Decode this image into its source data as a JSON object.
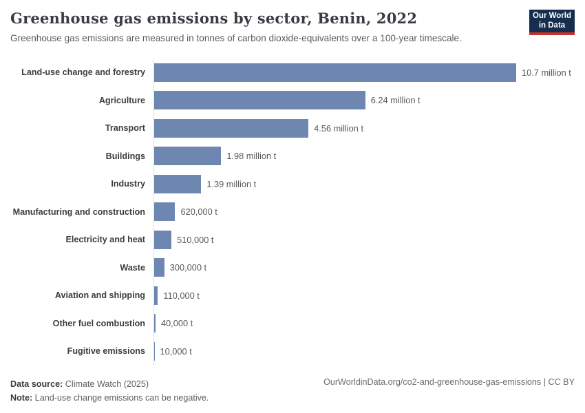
{
  "header": {
    "title": "Greenhouse gas emissions by sector, Benin, 2022",
    "subtitle": "Greenhouse gas emissions are measured in tonnes of carbon dioxide-equivalents over a 100-year timescale.",
    "logo": {
      "line1": "Our World",
      "line2": "in Data"
    }
  },
  "chart_data": {
    "type": "bar",
    "orientation": "horizontal",
    "title": "Greenhouse gas emissions by sector, Benin, 2022",
    "unit": "tonnes of carbon dioxide-equivalents",
    "categories": [
      "Land-use change and forestry",
      "Agriculture",
      "Transport",
      "Buildings",
      "Industry",
      "Manufacturing and construction",
      "Electricity and heat",
      "Waste",
      "Aviation and shipping",
      "Other fuel combustion",
      "Fugitive emissions"
    ],
    "values_million_t": [
      10.7,
      6.24,
      4.56,
      1.98,
      1.39,
      0.62,
      0.51,
      0.3,
      0.11,
      0.04,
      0.01
    ],
    "value_labels": [
      "10.7 million t",
      "6.24 million t",
      "4.56 million t",
      "1.98 million t",
      "1.39 million t",
      "620,000 t",
      "510,000 t",
      "300,000 t",
      "110,000 t",
      "40,000 t",
      "10,000 t"
    ],
    "xlim_million_t": [
      0,
      10.7
    ],
    "bar_color": "#6e87b0",
    "axis_color": "#e0e0e0",
    "grid": false,
    "legend": false
  },
  "footer": {
    "data_source_label": "Data source:",
    "data_source_value": " Climate Watch (2025)",
    "note_label": "Note:",
    "note_value": " Land-use change emissions can be negative.",
    "credit": "OurWorldinData.org/co2-and-greenhouse-gas-emissions | CC BY"
  },
  "colors": {
    "bar": "#6e87b0",
    "logo_navy": "#152d4e",
    "logo_red": "#c5312b",
    "title_text": "#3a3b43"
  }
}
